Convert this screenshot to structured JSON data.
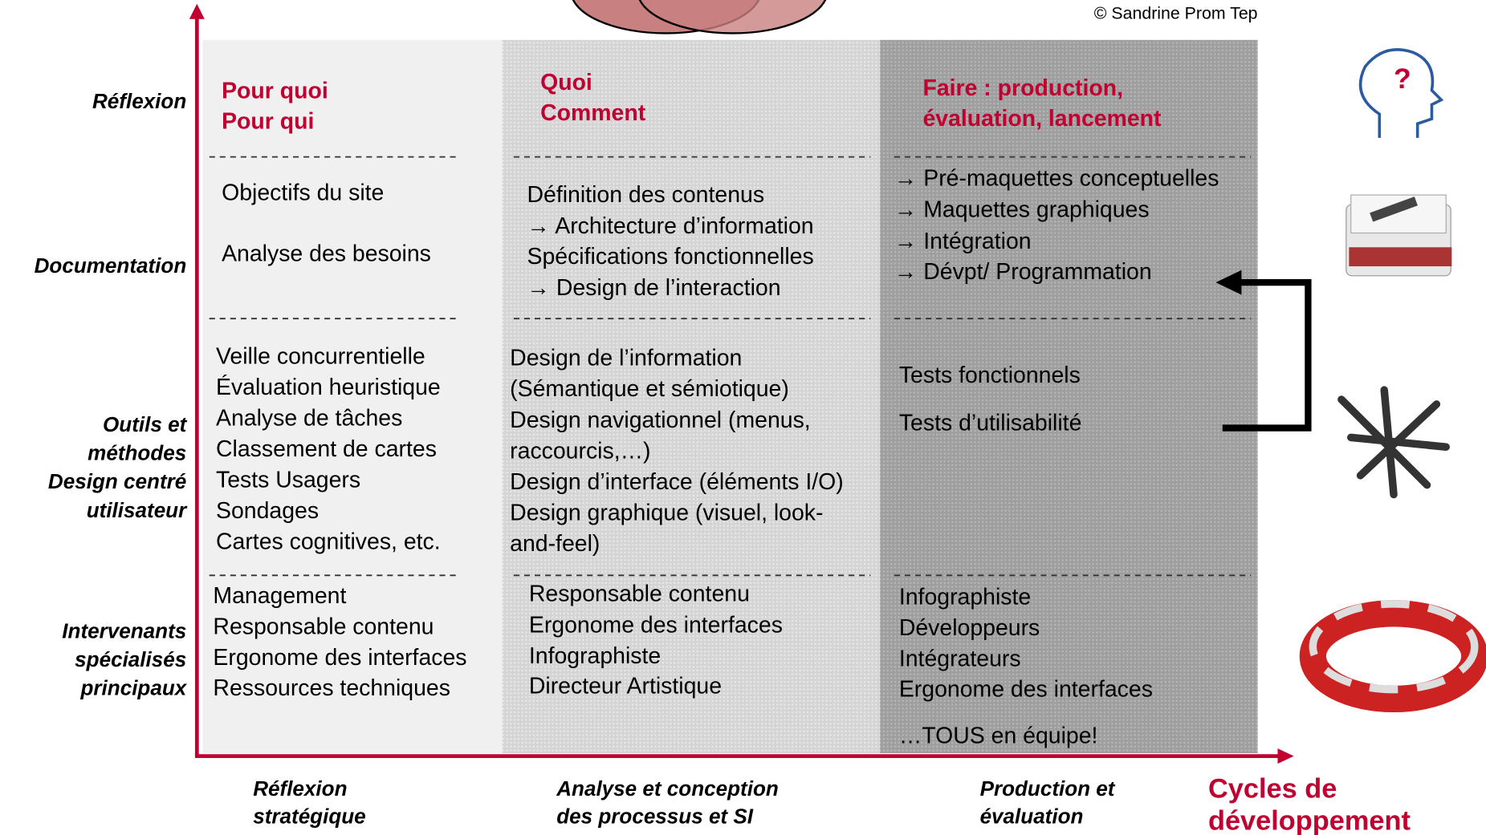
{
  "copyright": "© Sandrine Prom Tep",
  "row_labels": [
    [
      "Réflexion"
    ],
    [
      "Documentation"
    ],
    [
      "Outils et",
      "méthodes",
      "Design centré",
      "utilisateur"
    ],
    [
      "Intervenants",
      "spécialisés",
      "principaux"
    ]
  ],
  "columns": [
    {
      "header": [
        "Pour quoi",
        "Pour qui"
      ],
      "documentation": [
        "Objectifs du site",
        "Analyse des besoins"
      ],
      "tools": [
        "Veille concurrentielle",
        "Évaluation heuristique",
        "Analyse de tâches",
        "Classement de cartes",
        "Tests Usagers",
        "Sondages",
        "Cartes cognitives, etc."
      ],
      "roles": [
        "Management",
        "Responsable contenu",
        "Ergonome des interfaces",
        "Ressources techniques"
      ]
    },
    {
      "header": [
        "Quoi",
        "Comment"
      ],
      "documentation": [
        "Définition des contenus",
        " → Architecture d’information",
        "Spécifications fonctionnelles",
        " → Design de l’interaction"
      ],
      "tools": [
        "Design de l’information",
        "(Sémantique et sémiotique)",
        "Design navigationnel (menus,",
        "raccourcis,…)",
        "Design d’interface (éléments I/O)",
        "Design graphique (visuel, look-",
        "and-feel)"
      ],
      "roles": [
        "Responsable contenu",
        "Ergonome des interfaces",
        "Infographiste",
        "Directeur Artistique"
      ]
    },
    {
      "header": [
        "Faire : production,",
        "évaluation, lancement"
      ],
      "documentation": [
        "→ Pré-maquettes conceptuelles",
        "→ Maquettes graphiques",
        "→ Intégration",
        "→ Dévpt/ Programmation"
      ],
      "tools": [
        "Tests fonctionnels",
        "Tests d’utilisabilité"
      ],
      "roles": [
        "Infographiste",
        "Développeurs",
        "Intégrateurs",
        "Ergonome des interfaces",
        "…TOUS en équipe!"
      ]
    }
  ],
  "phases": [
    [
      "Réflexion",
      "stratégique"
    ],
    [
      "Analyse et conception",
      "des processus et SI"
    ],
    [
      "Production et",
      "évaluation"
    ]
  ],
  "axis_title": [
    "Cycles de",
    "développement"
  ]
}
